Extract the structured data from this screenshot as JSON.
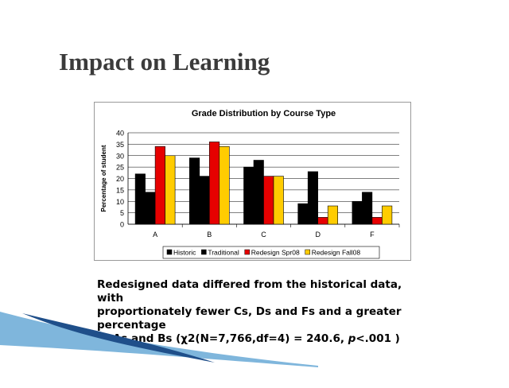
{
  "slide": {
    "title": "Impact on Learning",
    "caption_lines": [
      "Redesigned data differed from the historical data, with",
      "proportionately fewer Cs, Ds and Fs and a greater",
      "percentage",
      "of As and Bs (χ2(N=7,766,df=4) = 240.6, "
    ],
    "caption_p": "p",
    "caption_end": "<.001 )"
  },
  "colors": {
    "Historic": "#000000",
    "Traditional": "#000000",
    "Redesign Spr08": "#e60000",
    "Redesign Fall08": "#ffcc00",
    "swoosh_dark": "#1f4f8a",
    "swoosh_light": "#7fb6dc"
  },
  "chart_data": {
    "type": "bar",
    "title": "Grade Distribution by Course Type",
    "xlabel": "",
    "ylabel": "Percentage of student",
    "categories": [
      "A",
      "B",
      "C",
      "D",
      "F"
    ],
    "ylim": [
      0,
      40
    ],
    "yticks": [
      0,
      5,
      10,
      15,
      20,
      25,
      30,
      35,
      40
    ],
    "grid": true,
    "legend_position": "bottom",
    "series": [
      {
        "name": "Historic",
        "values": [
          22,
          29,
          25,
          9,
          10
        ]
      },
      {
        "name": "Traditional",
        "values": [
          14,
          21,
          28,
          23,
          14
        ]
      },
      {
        "name": "Redesign Spr08",
        "values": [
          34,
          36,
          21,
          3,
          3
        ]
      },
      {
        "name": "Redesign Fall08",
        "values": [
          30,
          34,
          21,
          8,
          8
        ]
      }
    ]
  }
}
